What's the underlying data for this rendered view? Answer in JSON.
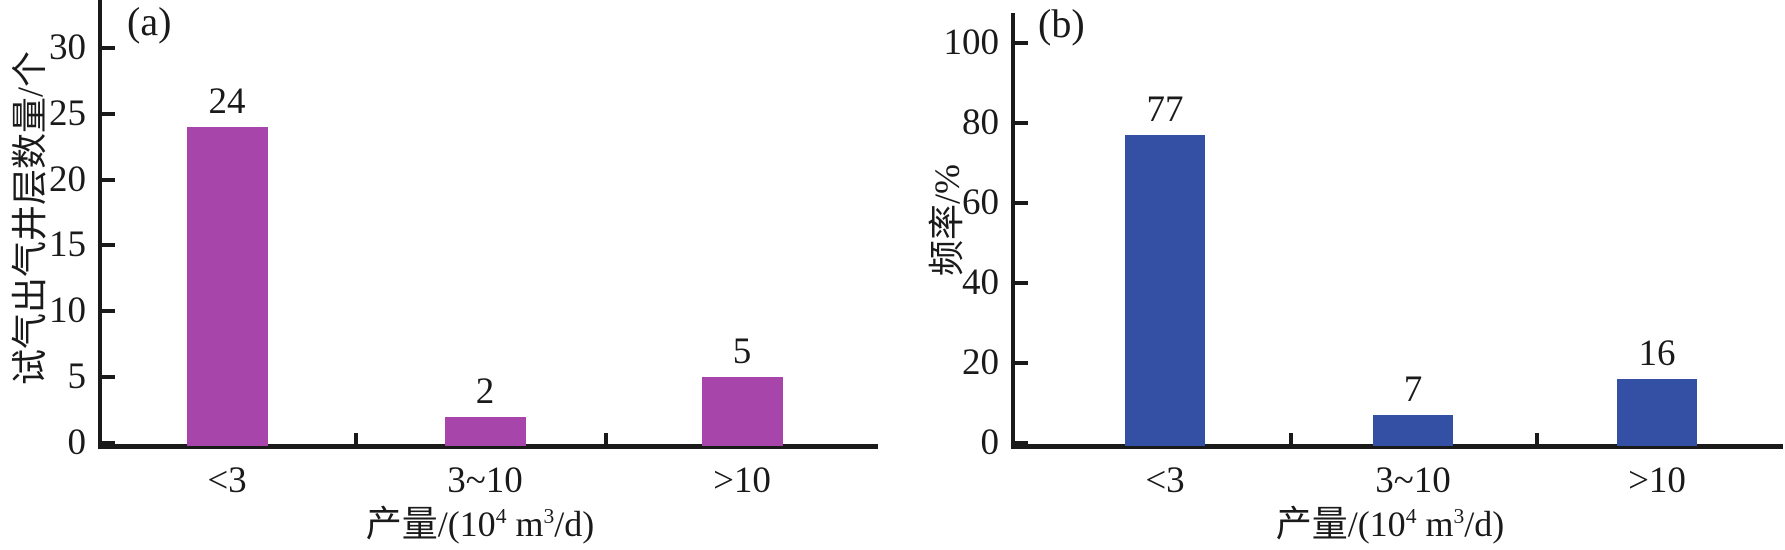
{
  "figure": {
    "background": "#ffffff",
    "text_color": "#1a1a1a",
    "axis_color": "#1a1a1a"
  },
  "chart_data": [
    {
      "type": "bar",
      "panel_label": "(a)",
      "categories": [
        "<3",
        "3~10",
        ">10"
      ],
      "values": [
        24,
        2,
        5
      ],
      "bar_value_labels": [
        "24",
        "2",
        "5"
      ],
      "title": "",
      "xlabel": "产量/(10⁴ m³/d)",
      "xlabel_parts": [
        {
          "t": "产量/(10"
        },
        {
          "t": "4",
          "sup": true
        },
        {
          "t": " m"
        },
        {
          "t": "3",
          "sup": true
        },
        {
          "t": "/d)"
        }
      ],
      "ylabel": "试气出气井层数量/个",
      "yticks": [
        0,
        5,
        10,
        15,
        20,
        25,
        30
      ],
      "ylim": [
        0,
        30
      ],
      "grid": false,
      "bar_color": "#a845ab"
    },
    {
      "type": "bar",
      "panel_label": "(b)",
      "categories": [
        "<3",
        "3~10",
        ">10"
      ],
      "values": [
        77,
        7,
        16
      ],
      "bar_value_labels": [
        "77",
        "7",
        "16"
      ],
      "title": "",
      "xlabel": "产量/(10⁴ m³/d)",
      "xlabel_parts": [
        {
          "t": "产量/(10"
        },
        {
          "t": "4",
          "sup": true
        },
        {
          "t": " m"
        },
        {
          "t": "3",
          "sup": true
        },
        {
          "t": "/d)"
        }
      ],
      "ylabel": "频率/%",
      "yticks": [
        0,
        20,
        40,
        60,
        80,
        100
      ],
      "ylim": [
        0,
        100
      ],
      "grid": false,
      "bar_color": "#3350a5"
    }
  ]
}
